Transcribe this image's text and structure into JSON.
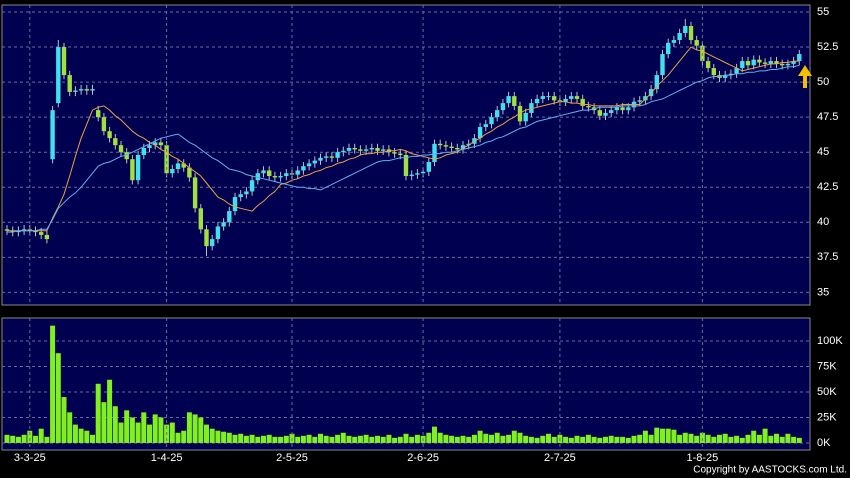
{
  "chart_data": [
    {
      "type": "candlestick",
      "open": [
        39.5,
        39.4,
        39.3,
        39.4,
        39.5,
        39.4,
        39.3,
        39.1,
        44.5,
        48.5,
        52.5,
        50.5,
        49.3,
        49.4,
        49.5,
        49.4,
        48,
        47.5,
        46.5,
        46,
        45.5,
        45,
        44.5,
        43,
        44.8,
        45.3,
        45.5,
        45.7,
        45.5,
        43.5,
        43.8,
        44.2,
        43.9,
        43.2,
        41,
        39.5,
        38.3,
        38.8,
        39.7,
        40,
        40.8,
        41.8,
        42,
        42.2,
        43,
        43.5,
        43.7,
        43.3,
        43.2,
        43.3,
        43.5,
        43.4,
        43.7,
        44,
        44.2,
        44.4,
        44.6,
        44.7,
        44.6,
        45,
        45.1,
        45.3,
        45.2,
        45.1,
        45.2,
        45.3,
        45.1,
        45.2,
        45,
        44.9,
        44.8,
        43.3,
        43.4,
        43.5,
        43.6,
        44.3,
        45.6,
        45.5,
        45.4,
        45.3,
        45.2,
        45.5,
        45.6,
        46,
        46.8,
        47,
        47.5,
        48,
        48.5,
        49,
        48.3,
        47.2,
        47.8,
        48.5,
        48.8,
        49,
        49,
        48.7,
        48.6,
        48.8,
        49,
        48.8,
        48.3,
        48.2,
        48,
        47.6,
        47.8,
        48,
        48.2,
        48,
        48.2,
        48.6,
        48.7,
        49,
        49.5,
        50.5,
        52,
        52.8,
        53,
        53.5,
        54,
        53,
        52.6,
        51.5,
        51,
        50.5,
        50.3,
        50.5,
        50.6,
        51,
        51.5,
        51.2,
        51.6,
        51.4,
        51.3,
        51.5,
        51.3,
        51.2,
        51.3,
        51.5
      ],
      "high": [
        39.8,
        39.7,
        39.7,
        39.8,
        39.8,
        39.7,
        39.6,
        39.4,
        48.3,
        53,
        52.8,
        50.8,
        49.7,
        49.8,
        49.8,
        49.8,
        48.3,
        47.8,
        46.8,
        46.3,
        45.8,
        45.3,
        44.8,
        45.1,
        45.6,
        45.8,
        46,
        46,
        45.8,
        44.1,
        44.5,
        44.5,
        44.2,
        43.5,
        41.3,
        39.8,
        39.1,
        40,
        40.3,
        41.1,
        42.1,
        42.3,
        42.5,
        43.3,
        43.8,
        44,
        44,
        43.6,
        43.6,
        43.8,
        43.8,
        44,
        44.3,
        44.5,
        44.7,
        44.9,
        45,
        45,
        45.3,
        45.4,
        45.6,
        45.6,
        45.5,
        45.5,
        45.6,
        45.6,
        45.5,
        45.5,
        45.3,
        45.2,
        45.1,
        43.7,
        43.8,
        43.9,
        44.6,
        45.9,
        45.9,
        45.8,
        45.7,
        45.6,
        45.8,
        45.9,
        46.3,
        47.1,
        47.3,
        47.8,
        48.3,
        48.8,
        49.3,
        49.3,
        48.6,
        48.1,
        48.8,
        49.1,
        49.3,
        49.3,
        49.3,
        49,
        49.1,
        49.3,
        49.3,
        49.1,
        48.6,
        48.5,
        48.3,
        48.1,
        48.3,
        48.5,
        48.5,
        48.5,
        48.9,
        49,
        49.3,
        49.8,
        50.8,
        52.3,
        53.1,
        53.3,
        53.8,
        54.5,
        54.3,
        53.3,
        52.9,
        51.8,
        51.3,
        50.8,
        50.8,
        50.9,
        51.3,
        51.8,
        51.8,
        51.9,
        51.9,
        51.7,
        51.8,
        51.8,
        51.6,
        51.6,
        51.8,
        52.3
      ],
      "low": [
        39.1,
        39,
        39,
        39.1,
        39.1,
        39,
        38.8,
        38.5,
        44.2,
        48.2,
        50.2,
        49,
        49,
        49.1,
        49.1,
        49.1,
        47.2,
        46.2,
        45.7,
        45.2,
        44.7,
        44.2,
        42.7,
        42.7,
        44.5,
        45,
        45.2,
        45.2,
        43.2,
        43.2,
        43.5,
        43.6,
        42.9,
        40.7,
        39.2,
        37.6,
        38,
        38.5,
        39.4,
        39.7,
        40.5,
        41.5,
        41.7,
        41.9,
        42.7,
        43.2,
        43,
        42.9,
        42.9,
        43,
        43.1,
        43.1,
        43.4,
        43.7,
        43.9,
        44.1,
        44.3,
        44.3,
        44.3,
        44.7,
        44.8,
        44.9,
        44.8,
        44.8,
        44.9,
        44.8,
        44.8,
        44.7,
        44.6,
        44.5,
        43,
        43,
        43.1,
        43.2,
        43.3,
        44,
        45.2,
        45.1,
        45,
        44.9,
        44.9,
        45.2,
        45.3,
        45.7,
        46.5,
        46.7,
        47.2,
        47.7,
        48.2,
        48,
        46.9,
        46.9,
        47.5,
        48.2,
        48.5,
        48.7,
        48.4,
        48.3,
        48.3,
        48.5,
        48.5,
        48,
        47.9,
        47.7,
        47.3,
        47.3,
        47.5,
        47.7,
        47.7,
        47.7,
        47.9,
        48.3,
        48.4,
        48.7,
        49.2,
        50.2,
        51.7,
        52.5,
        52.7,
        53.2,
        52.7,
        52.3,
        51.2,
        50.7,
        50.2,
        50,
        50,
        50.2,
        50.3,
        50.7,
        50.9,
        50.9,
        51.1,
        51,
        51,
        51,
        50.9,
        50.9,
        51,
        51.2
      ],
      "close": [
        39.4,
        39.3,
        39.4,
        39.5,
        39.4,
        39.3,
        39.1,
        38.8,
        48,
        52.5,
        50.5,
        49.3,
        49.4,
        49.5,
        49.4,
        49.5,
        47.5,
        46.5,
        46,
        45.5,
        45,
        44.5,
        43,
        44.8,
        45.3,
        45.5,
        45.7,
        45.5,
        43.5,
        43.8,
        44.2,
        43.9,
        43.2,
        41,
        39.5,
        38.3,
        38.8,
        39.7,
        40,
        40.8,
        41.8,
        42,
        42.2,
        43,
        43.5,
        43.7,
        43.3,
        43.2,
        43.3,
        43.5,
        43.4,
        43.7,
        44,
        44.2,
        44.4,
        44.6,
        44.7,
        44.6,
        45,
        45.1,
        45.3,
        45.2,
        45.1,
        45.2,
        45.3,
        45.1,
        45.2,
        45,
        44.9,
        44.8,
        43.3,
        43.4,
        43.5,
        43.6,
        44.3,
        45.6,
        45.5,
        45.4,
        45.3,
        45.2,
        45.5,
        45.6,
        46,
        46.8,
        47,
        47.5,
        48,
        48.5,
        49,
        48.3,
        47.2,
        47.8,
        48.5,
        48.8,
        49,
        49,
        48.7,
        48.6,
        48.8,
        49,
        48.8,
        48.3,
        48.2,
        48,
        47.6,
        47.8,
        48,
        48.2,
        48,
        48.2,
        48.6,
        48.7,
        49,
        49.5,
        50.5,
        52,
        52.8,
        53,
        53.5,
        54,
        53,
        52.6,
        51.5,
        51,
        50.5,
        50.3,
        50.5,
        50.6,
        51,
        51.5,
        51.2,
        51.6,
        51.4,
        51.3,
        51.5,
        51.3,
        51.2,
        51.3,
        51.5,
        52
      ],
      "up_color": "#40e0f0",
      "down_color": "#a0e040",
      "series": [
        {
          "color": "#f0a040",
          "values": [
            39.4,
            39.4,
            39.4,
            39.4,
            39.4,
            39.4,
            39.4,
            39.4,
            40.3,
            41.1,
            42,
            43.3,
            44.7,
            46,
            47,
            48,
            48.2,
            48.3,
            48,
            47.6,
            47.3,
            46.9,
            46.5,
            46.2,
            46,
            45.7,
            45.5,
            45.2,
            45,
            44.7,
            44.5,
            44.2,
            43.9,
            43.6,
            43.3,
            42.8,
            42.3,
            41.8,
            41.6,
            41.3,
            41.1,
            41,
            40.9,
            40.8,
            41.2,
            41.5,
            41.9,
            42.2,
            42.7,
            42.8,
            43,
            43.1,
            43.3,
            43.4,
            43.6,
            43.7,
            43.9,
            44,
            44.2,
            44.3,
            44.5,
            44.6,
            44.8,
            44.9,
            44.9,
            45,
            45,
            45.1,
            45.1,
            45.2,
            45.1,
            44.9,
            44.8,
            44.7,
            44.6,
            44.5,
            44.6,
            44.8,
            44.9,
            45,
            45.3,
            45.5,
            45.8,
            46,
            46.3,
            46.5,
            46.8,
            47,
            47.3,
            47.5,
            47.8,
            48,
            48.1,
            48.2,
            48.3,
            48.4,
            48.5,
            48.6,
            48.6,
            48.5,
            48.5,
            48.4,
            48.4,
            48.3,
            48.3,
            48.3,
            48.3,
            48.3,
            48.4,
            48.4,
            48.4,
            48.4,
            48.8,
            49.2,
            49.7,
            50.1,
            50.5,
            51,
            51.5,
            52,
            52.5,
            52.3,
            52.2,
            52,
            51.8,
            51.6,
            51.4,
            51.2,
            51,
            50.8,
            50.9,
            51,
            51.1,
            51.2,
            51.3,
            51.3,
            51.4,
            51.4,
            51.5,
            51.5
          ]
        },
        {
          "color": "#60b0f0",
          "values": [
            39.3,
            39.3,
            39.4,
            39.4,
            39.4,
            39.4,
            39.5,
            39.5,
            40.2,
            41,
            41.4,
            41.8,
            42.1,
            42.5,
            43,
            43.5,
            44,
            44.2,
            44.3,
            44.5,
            44.7,
            44.8,
            45,
            45.2,
            45.4,
            45.6,
            45.8,
            46,
            46.1,
            46.2,
            46.3,
            46,
            45.7,
            45.5,
            45.2,
            44.9,
            44.6,
            44.4,
            44.1,
            43.8,
            43.7,
            43.6,
            43.4,
            43.3,
            43.2,
            43.1,
            43,
            42.9,
            42.8,
            42.7,
            42.6,
            42.5,
            42.5,
            42.4,
            42.4,
            42.3,
            42.5,
            42.7,
            42.9,
            43.1,
            43.3,
            43.5,
            43.7,
            43.9,
            44.1,
            44.3,
            44.4,
            44.4,
            44.5,
            44.6,
            44.6,
            44.7,
            44.7,
            44.8,
            44.8,
            44.9,
            44.9,
            45,
            45,
            45.1,
            45.2,
            45.3,
            45.4,
            45.5,
            45.7,
            45.8,
            46,
            46.1,
            46.3,
            46.5,
            46.7,
            46.8,
            47,
            47.2,
            47.3,
            47.4,
            47.5,
            47.6,
            47.7,
            47.8,
            47.9,
            48,
            48,
            48.1,
            48.2,
            48.2,
            48.2,
            48.2,
            48.3,
            48.3,
            48.3,
            48.3,
            48.4,
            48.6,
            48.7,
            48.8,
            49,
            49.2,
            49.4,
            49.6,
            49.8,
            50,
            50.1,
            50.3,
            50.4,
            50.4,
            50.5,
            50.5,
            50.6,
            50.6,
            50.7,
            50.7,
            50.8,
            50.8,
            50.9,
            50.9,
            51,
            51.1,
            51.1,
            51.2
          ]
        }
      ],
      "ylim": [
        34.1,
        55.5
      ],
      "yticks": [
        35,
        37.5,
        40,
        42.5,
        45,
        47.5,
        50,
        52.5,
        55
      ],
      "grid": true
    },
    {
      "type": "bar",
      "categories": [
        null,
        null,
        null,
        null,
        "3-3-25",
        null,
        null,
        null,
        null,
        null,
        null,
        null,
        null,
        null,
        null,
        null,
        null,
        null,
        null,
        null,
        null,
        null,
        null,
        null,
        null,
        null,
        null,
        null,
        "1-4-25",
        null,
        null,
        null,
        null,
        null,
        null,
        null,
        null,
        null,
        null,
        null,
        null,
        null,
        null,
        null,
        null,
        null,
        null,
        null,
        null,
        null,
        "2-5-25",
        null,
        null,
        null,
        null,
        null,
        null,
        null,
        null,
        null,
        null,
        null,
        null,
        null,
        null,
        null,
        null,
        null,
        null,
        null,
        null,
        null,
        null,
        "2-6-25",
        null,
        null,
        null,
        null,
        null,
        null,
        null,
        null,
        null,
        null,
        null,
        null,
        null,
        null,
        null,
        null,
        null,
        null,
        null,
        null,
        null,
        null,
        null,
        "2-7-25",
        null,
        null,
        null,
        null,
        null,
        null,
        null,
        null,
        null,
        null,
        null,
        null,
        null,
        null,
        null,
        null,
        null,
        null,
        null,
        null,
        null,
        null,
        null,
        null,
        "1-8-25",
        null,
        null,
        null,
        null,
        null,
        null,
        null,
        null,
        null,
        null,
        null,
        null,
        null,
        null,
        null,
        null,
        null
      ],
      "values": [
        8000,
        7000,
        6000,
        8000,
        12000,
        7000,
        14000,
        6000,
        115000,
        88000,
        45000,
        30000,
        18000,
        14000,
        12000,
        8000,
        58000,
        40000,
        62000,
        36000,
        20000,
        32000,
        25000,
        20000,
        30000,
        18000,
        28000,
        25000,
        18000,
        20000,
        10000,
        12000,
        30000,
        28000,
        25000,
        18000,
        14000,
        12000,
        11000,
        10000,
        8000,
        9000,
        7000,
        8000,
        6000,
        7000,
        8000,
        6000,
        6000,
        7000,
        9000,
        6000,
        7000,
        8000,
        6000,
        9000,
        7000,
        6000,
        8000,
        10000,
        7000,
        6000,
        7000,
        8000,
        6000,
        7000,
        6000,
        8000,
        5000,
        6000,
        9000,
        6000,
        8000,
        7000,
        10000,
        16000,
        10000,
        8000,
        7000,
        6000,
        7000,
        6000,
        8000,
        12000,
        9000,
        8000,
        10000,
        7000,
        8000,
        12000,
        10000,
        7000,
        6000,
        5000,
        7000,
        9000,
        6000,
        8000,
        6000,
        5000,
        7000,
        6000,
        8000,
        6000,
        5000,
        6000,
        7000,
        6000,
        6000,
        5000,
        7000,
        8000,
        12000,
        8000,
        15000,
        14000,
        14000,
        13000,
        8000,
        10000,
        9000,
        7000,
        10000,
        8000,
        6000,
        8000,
        9000,
        6000,
        7000,
        5000,
        8000,
        12000,
        8000,
        14000,
        7000,
        9000,
        6000,
        9000,
        6000,
        5000
      ],
      "color": "#80f020",
      "ylim": [
        -6900,
        122500
      ],
      "yticks": [
        {
          "value": 0,
          "label": "0K"
        },
        {
          "value": 25000,
          "label": "25K"
        },
        {
          "value": 50000,
          "label": "50K"
        },
        {
          "value": 75000,
          "label": "75K"
        },
        {
          "value": 100000,
          "label": "100K"
        }
      ],
      "grid": true
    }
  ],
  "copyright": "Copyright by AASTOCKS.com Ltd."
}
